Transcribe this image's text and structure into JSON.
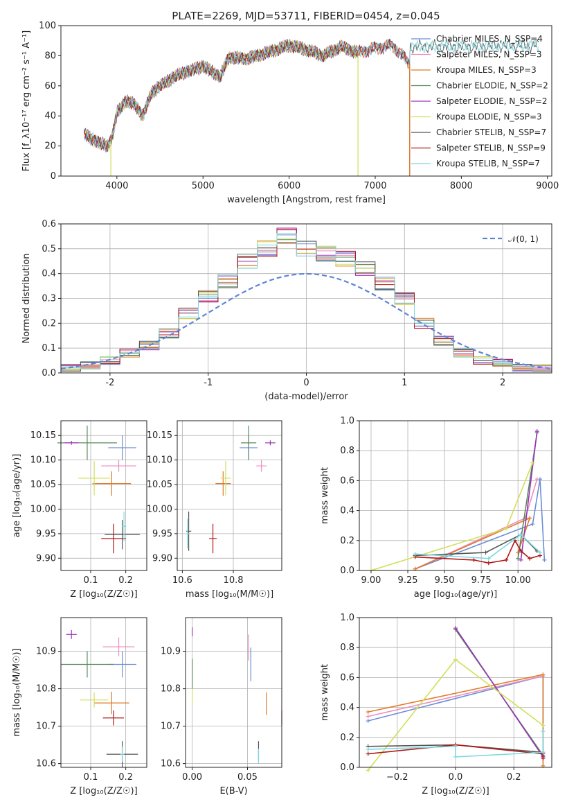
{
  "figure": {
    "title": "PLATE=2269, MJD=53711, FIBERID=0454, z=0.045"
  },
  "chart_data": [
    {
      "id": "spectrum",
      "type": "line",
      "xlabel": "wavelength [Angstrom, rest frame]",
      "ylabel": "Flux [f_λ10⁻¹⁷ erg cm⁻² s⁻¹ A⁻¹]",
      "xlim": [
        3350,
        9050
      ],
      "ylim": [
        0,
        100
      ],
      "xticks": [
        4000,
        5000,
        6000,
        7000,
        8000,
        9000
      ],
      "yticks": [
        0,
        20,
        40,
        60,
        80,
        100
      ],
      "grid": false,
      "legend": "top-right",
      "spectrum_profile": {
        "x": [
          3620,
          3700,
          3800,
          3900,
          3950,
          4000,
          4100,
          4200,
          4300,
          4400,
          4500,
          4700,
          5000,
          5200,
          5300,
          5500,
          5800,
          6000,
          6200,
          6400,
          6600,
          6800,
          7000,
          7200,
          7400
        ],
        "y": [
          28,
          25,
          22,
          20,
          27,
          42,
          50,
          48,
          40,
          55,
          60,
          67,
          73,
          66,
          79,
          78,
          83,
          87,
          84,
          80,
          86,
          82,
          85,
          87,
          75
        ]
      },
      "series": [
        {
          "name": "Chabrier MILES, N_SSP=4",
          "color": "#6a8ed8",
          "x_end": 7400
        },
        {
          "name": "Salpeter MILES, N_SSP=3",
          "color": "#ee8dc0",
          "x_end": 7400
        },
        {
          "name": "Kroupa MILES, N_SSP=3",
          "color": "#e07b28",
          "x_end": 7400
        },
        {
          "name": "Chabrier ELODIE, N_SSP=2",
          "color": "#5a8a5e",
          "x_end": 6800
        },
        {
          "name": "Salpeter ELODIE, N_SSP=2",
          "color": "#9a35b5",
          "x_end": 6800
        },
        {
          "name": "Kroupa ELODIE, N_SSP=3",
          "color": "#d0e058",
          "x_end": 6800
        },
        {
          "name": "Chabrier STELIB, N_SSP=7",
          "color": "#555555",
          "x_end": 8900
        },
        {
          "name": "Salpeter STELIB, N_SSP=9",
          "color": "#b01818",
          "x_end": 7400
        },
        {
          "name": "Kroupa STELIB, N_SSP=7",
          "color": "#7dd8e0",
          "x_end": 8900
        }
      ],
      "dropouts": [
        3930,
        6800,
        7400
      ]
    },
    {
      "id": "residuals",
      "type": "bar",
      "xlabel": "(data-model)/error",
      "ylabel": "Normed distribution",
      "xlim": [
        -2.5,
        2.5
      ],
      "ylim": [
        0,
        0.6
      ],
      "xticks": [
        -2,
        -1,
        0,
        1,
        2
      ],
      "yticks": [
        0.0,
        0.1,
        0.2,
        0.3,
        0.4,
        0.5,
        0.6
      ],
      "grid": true,
      "legend": "top-right",
      "bin_edges": [
        -2.5,
        -2.3,
        -2.1,
        -1.9,
        -1.7,
        -1.5,
        -1.3,
        -1.1,
        -0.9,
        -0.7,
        -0.5,
        -0.3,
        -0.1,
        0.1,
        0.3,
        0.5,
        0.7,
        0.9,
        1.1,
        1.3,
        1.5,
        1.7,
        1.9,
        2.1,
        2.3,
        2.5
      ],
      "histogram_mean": [
        0.02,
        0.03,
        0.05,
        0.08,
        0.11,
        0.16,
        0.24,
        0.31,
        0.37,
        0.45,
        0.5,
        0.55,
        0.5,
        0.48,
        0.46,
        0.42,
        0.36,
        0.3,
        0.2,
        0.13,
        0.08,
        0.05,
        0.04,
        0.02,
        0.02
      ],
      "gaussian": {
        "name": "𝒩(0, 1)",
        "color": "#5f84d6",
        "mu": 0,
        "sigma": 1
      }
    },
    {
      "id": "age-vs-Z",
      "type": "scatter",
      "xlabel": "Z [log₁₀(Z/Z☉)]",
      "ylabel": "age  [log₁₀(age/yr)]",
      "xlim": [
        0.015,
        0.26
      ],
      "ylim": [
        9.875,
        10.18
      ],
      "xticks": [
        0.1,
        0.2
      ],
      "yticks": [
        9.9,
        9.95,
        10.0,
        10.05,
        10.1,
        10.15
      ],
      "grid": true,
      "points": [
        {
          "series": 0,
          "x": 0.19,
          "y": 10.125,
          "xerr": 0.04,
          "yerr": 0.025
        },
        {
          "series": 1,
          "x": 0.18,
          "y": 10.088,
          "xerr": 0.05,
          "yerr": 0.012
        },
        {
          "series": 2,
          "x": 0.16,
          "y": 10.052,
          "xerr": 0.055,
          "yerr": 0.025
        },
        {
          "series": 3,
          "x": 0.09,
          "y": 10.135,
          "xerr": 0.085,
          "yerr": 0.035
        },
        {
          "series": 4,
          "x": 0.045,
          "y": 10.135,
          "xerr": 0.02,
          "yerr": 0.004
        },
        {
          "series": 5,
          "x": 0.11,
          "y": 10.063,
          "xerr": 0.045,
          "yerr": 0.035
        },
        {
          "series": 6,
          "x": 0.19,
          "y": 9.948,
          "xerr": 0.05,
          "yerr": 0.03
        },
        {
          "series": 7,
          "x": 0.165,
          "y": 9.94,
          "xerr": 0.035,
          "yerr": 0.03
        },
        {
          "series": 8,
          "x": 0.195,
          "y": 9.965,
          "xerr": 0.006,
          "yerr": 0.03
        }
      ]
    },
    {
      "id": "age-vs-mass",
      "type": "scatter",
      "xlabel": "mass [log₁₀(M/M☉)]",
      "ylabel": "",
      "xlim": [
        10.58,
        10.99
      ],
      "ylim": [
        9.875,
        10.18
      ],
      "xticks": [
        10.6,
        10.8
      ],
      "yticks": [
        9.9,
        9.95,
        10.0,
        10.05,
        10.1,
        10.15
      ],
      "grid": true,
      "points": [
        {
          "series": 0,
          "x": 10.86,
          "y": 10.125,
          "xerr": 0.035,
          "yerr": 0.025
        },
        {
          "series": 1,
          "x": 10.91,
          "y": 10.088,
          "xerr": 0.02,
          "yerr": 0.012
        },
        {
          "series": 2,
          "x": 10.76,
          "y": 10.052,
          "xerr": 0.03,
          "yerr": 0.025
        },
        {
          "series": 3,
          "x": 10.86,
          "y": 10.135,
          "xerr": 0.03,
          "yerr": 0.035
        },
        {
          "series": 4,
          "x": 10.945,
          "y": 10.135,
          "xerr": 0.02,
          "yerr": 0.005
        },
        {
          "series": 5,
          "x": 10.77,
          "y": 10.063,
          "xerr": 0.02,
          "yerr": 0.035
        },
        {
          "series": 6,
          "x": 10.625,
          "y": 9.955,
          "xerr": 0.01,
          "yerr": 0.04
        },
        {
          "series": 7,
          "x": 10.72,
          "y": 9.94,
          "xerr": 0.015,
          "yerr": 0.03
        },
        {
          "series": 8,
          "x": 10.62,
          "y": 9.95,
          "xerr": 0.006,
          "yerr": 0.03
        }
      ]
    },
    {
      "id": "massweight-vs-age",
      "type": "line",
      "xlabel": "age  [log₁₀(age/yr)]",
      "ylabel": "mass weight",
      "xlim": [
        8.92,
        10.23
      ],
      "ylim": [
        0,
        1
      ],
      "xticks": [
        9.0,
        9.25,
        9.5,
        9.75,
        10.0
      ],
      "xtick_labels": [
        "9.00",
        "9.25",
        "9.50",
        "9.75",
        "10.00"
      ],
      "yticks": [
        0,
        0.2,
        0.4,
        0.6,
        0.8,
        1.0
      ],
      "grid": true,
      "series": [
        {
          "series": 0,
          "x": [
            10.18,
            10.15,
            10.1,
            9.3
          ],
          "y": [
            0.07,
            0.61,
            0.31,
            0.01
          ]
        },
        {
          "series": 1,
          "x": [
            10.13,
            10.05,
            9.3
          ],
          "y": [
            0.61,
            0.35,
            0.01
          ]
        },
        {
          "series": 2,
          "x": [
            10.0,
            10.08,
            9.3
          ],
          "y": [
            0.12,
            0.35,
            0.01
          ]
        },
        {
          "series": 3,
          "x": [
            10.13,
            10.0
          ],
          "y": [
            0.92,
            0.08
          ]
        },
        {
          "series": 4,
          "x": [
            10.13,
            10.02
          ],
          "y": [
            0.93,
            0.07
          ]
        },
        {
          "series": 5,
          "x": [
            9.0,
            9.92,
            10.1
          ],
          "y": [
            0.0,
            0.28,
            0.72
          ]
        },
        {
          "series": 6,
          "x": [
            9.3,
            9.78,
            10.02,
            10.13
          ],
          "y": [
            0.1,
            0.12,
            0.24,
            0.13
          ]
        },
        {
          "series": 7,
          "x": [
            9.3,
            9.7,
            9.8,
            9.92,
            9.98,
            10.02,
            10.08,
            10.15
          ],
          "y": [
            0.09,
            0.07,
            0.05,
            0.07,
            0.2,
            0.13,
            0.08,
            0.1
          ]
        },
        {
          "series": 8,
          "x": [
            9.3,
            9.8,
            10.02,
            10.15
          ],
          "y": [
            0.11,
            0.08,
            0.24,
            0.12
          ]
        }
      ]
    },
    {
      "id": "mass-vs-Z",
      "type": "scatter",
      "xlabel": "Z [log₁₀(Z/Z☉)]",
      "ylabel": "mass [log₁₀(M/M☉)]",
      "xlim": [
        0.015,
        0.26
      ],
      "ylim": [
        10.59,
        10.99
      ],
      "xticks": [
        0.1,
        0.2
      ],
      "yticks": [
        10.6,
        10.7,
        10.8,
        10.9
      ],
      "grid": true,
      "points": [
        {
          "series": 0,
          "x": 0.19,
          "y": 10.865,
          "xerr": 0.04,
          "yerr": 0.035
        },
        {
          "series": 1,
          "x": 0.18,
          "y": 10.912,
          "xerr": 0.045,
          "yerr": 0.025
        },
        {
          "series": 2,
          "x": 0.16,
          "y": 10.762,
          "xerr": 0.05,
          "yerr": 0.03
        },
        {
          "series": 3,
          "x": 0.09,
          "y": 10.865,
          "xerr": 0.075,
          "yerr": 0.035
        },
        {
          "series": 4,
          "x": 0.045,
          "y": 10.945,
          "xerr": 0.015,
          "yerr": 0.012
        },
        {
          "series": 5,
          "x": 0.11,
          "y": 10.77,
          "xerr": 0.04,
          "yerr": 0.02
        },
        {
          "series": 6,
          "x": 0.19,
          "y": 10.625,
          "xerr": 0.045,
          "yerr": 0.035
        },
        {
          "series": 7,
          "x": 0.165,
          "y": 10.722,
          "xerr": 0.03,
          "yerr": 0.02
        },
        {
          "series": 8,
          "x": 0.19,
          "y": 10.625,
          "xerr": 0.005,
          "yerr": 0.02
        }
      ]
    },
    {
      "id": "mass-vs-ebv",
      "type": "scatter",
      "xlabel": "E(B-V)",
      "ylabel": "",
      "xlim": [
        -0.006,
        0.081
      ],
      "ylim": [
        10.59,
        10.99
      ],
      "xticks": [
        0.0,
        0.05
      ],
      "xtick_labels": [
        "0.00",
        "0.05"
      ],
      "yticks": [
        10.6,
        10.7,
        10.8,
        10.9
      ],
      "grid": true,
      "points": [
        {
          "series": 0,
          "x": 0.053,
          "y": 10.865,
          "xerr": 0.0,
          "yerr": 0.045
        },
        {
          "series": 1,
          "x": 0.051,
          "y": 10.91,
          "xerr": 0.0,
          "yerr": 0.035
        },
        {
          "series": 2,
          "x": 0.067,
          "y": 10.76,
          "xerr": 0.0,
          "yerr": 0.03
        },
        {
          "series": 3,
          "x": 0.0,
          "y": 10.84,
          "xerr": 0.0,
          "yerr": 0.04
        },
        {
          "series": 4,
          "x": 0.0,
          "y": 10.952,
          "xerr": 0.0,
          "yerr": 0.012
        },
        {
          "series": 5,
          "x": 0.0,
          "y": 10.78,
          "xerr": 0.0,
          "yerr": 0.02
        },
        {
          "series": 6,
          "x": 0.06,
          "y": 10.635,
          "xerr": 0.0,
          "yerr": 0.025
        },
        {
          "series": 7,
          "x": 0.081,
          "y": 10.722,
          "xerr": 0.0,
          "yerr": 0.02
        },
        {
          "series": 8,
          "x": 0.06,
          "y": 10.62,
          "xerr": 0.0,
          "yerr": 0.02
        }
      ]
    },
    {
      "id": "massweight-vs-Z",
      "type": "line",
      "xlabel": "Z [log₁₀(Z/Z☉)]",
      "ylabel": "mass weight",
      "xlim": [
        -0.33,
        0.33
      ],
      "ylim": [
        0,
        1
      ],
      "xticks": [
        -0.2,
        0.0,
        0.2
      ],
      "xtick_labels": [
        "−0.2",
        "0.0",
        "0.2"
      ],
      "yticks": [
        0,
        0.2,
        0.4,
        0.6,
        0.8,
        1.0
      ],
      "grid": true,
      "series": [
        {
          "series": 0,
          "x": [
            -0.3,
            0.3,
            0.3
          ],
          "y": [
            0.31,
            0.61,
            0.07
          ]
        },
        {
          "series": 1,
          "x": [
            -0.3,
            0.3
          ],
          "y": [
            0.34,
            0.61
          ]
        },
        {
          "series": 2,
          "x": [
            -0.3,
            0.3,
            0.3
          ],
          "y": [
            0.37,
            0.62,
            0.01
          ]
        },
        {
          "series": 3,
          "x": [
            0.0,
            0.3
          ],
          "y": [
            0.92,
            0.08
          ]
        },
        {
          "series": 4,
          "x": [
            0.0,
            0.3
          ],
          "y": [
            0.93,
            0.07
          ]
        },
        {
          "series": 5,
          "x": [
            -0.3,
            0.0,
            0.3
          ],
          "y": [
            -0.02,
            0.72,
            0.28
          ]
        },
        {
          "series": 6,
          "x": [
            -0.3,
            0.0,
            0.3
          ],
          "y": [
            0.14,
            0.15,
            0.1
          ]
        },
        {
          "series": 7,
          "x": [
            -0.3,
            0.0,
            0.3,
            0.3
          ],
          "y": [
            0.09,
            0.15,
            0.09,
            0.06
          ]
        },
        {
          "series": 8,
          "x": [
            -0.3,
            0.0,
            0.0,
            0.3,
            0.3
          ],
          "y": [
            0.12,
            0.14,
            0.07,
            0.1,
            0.24
          ]
        }
      ]
    }
  ]
}
